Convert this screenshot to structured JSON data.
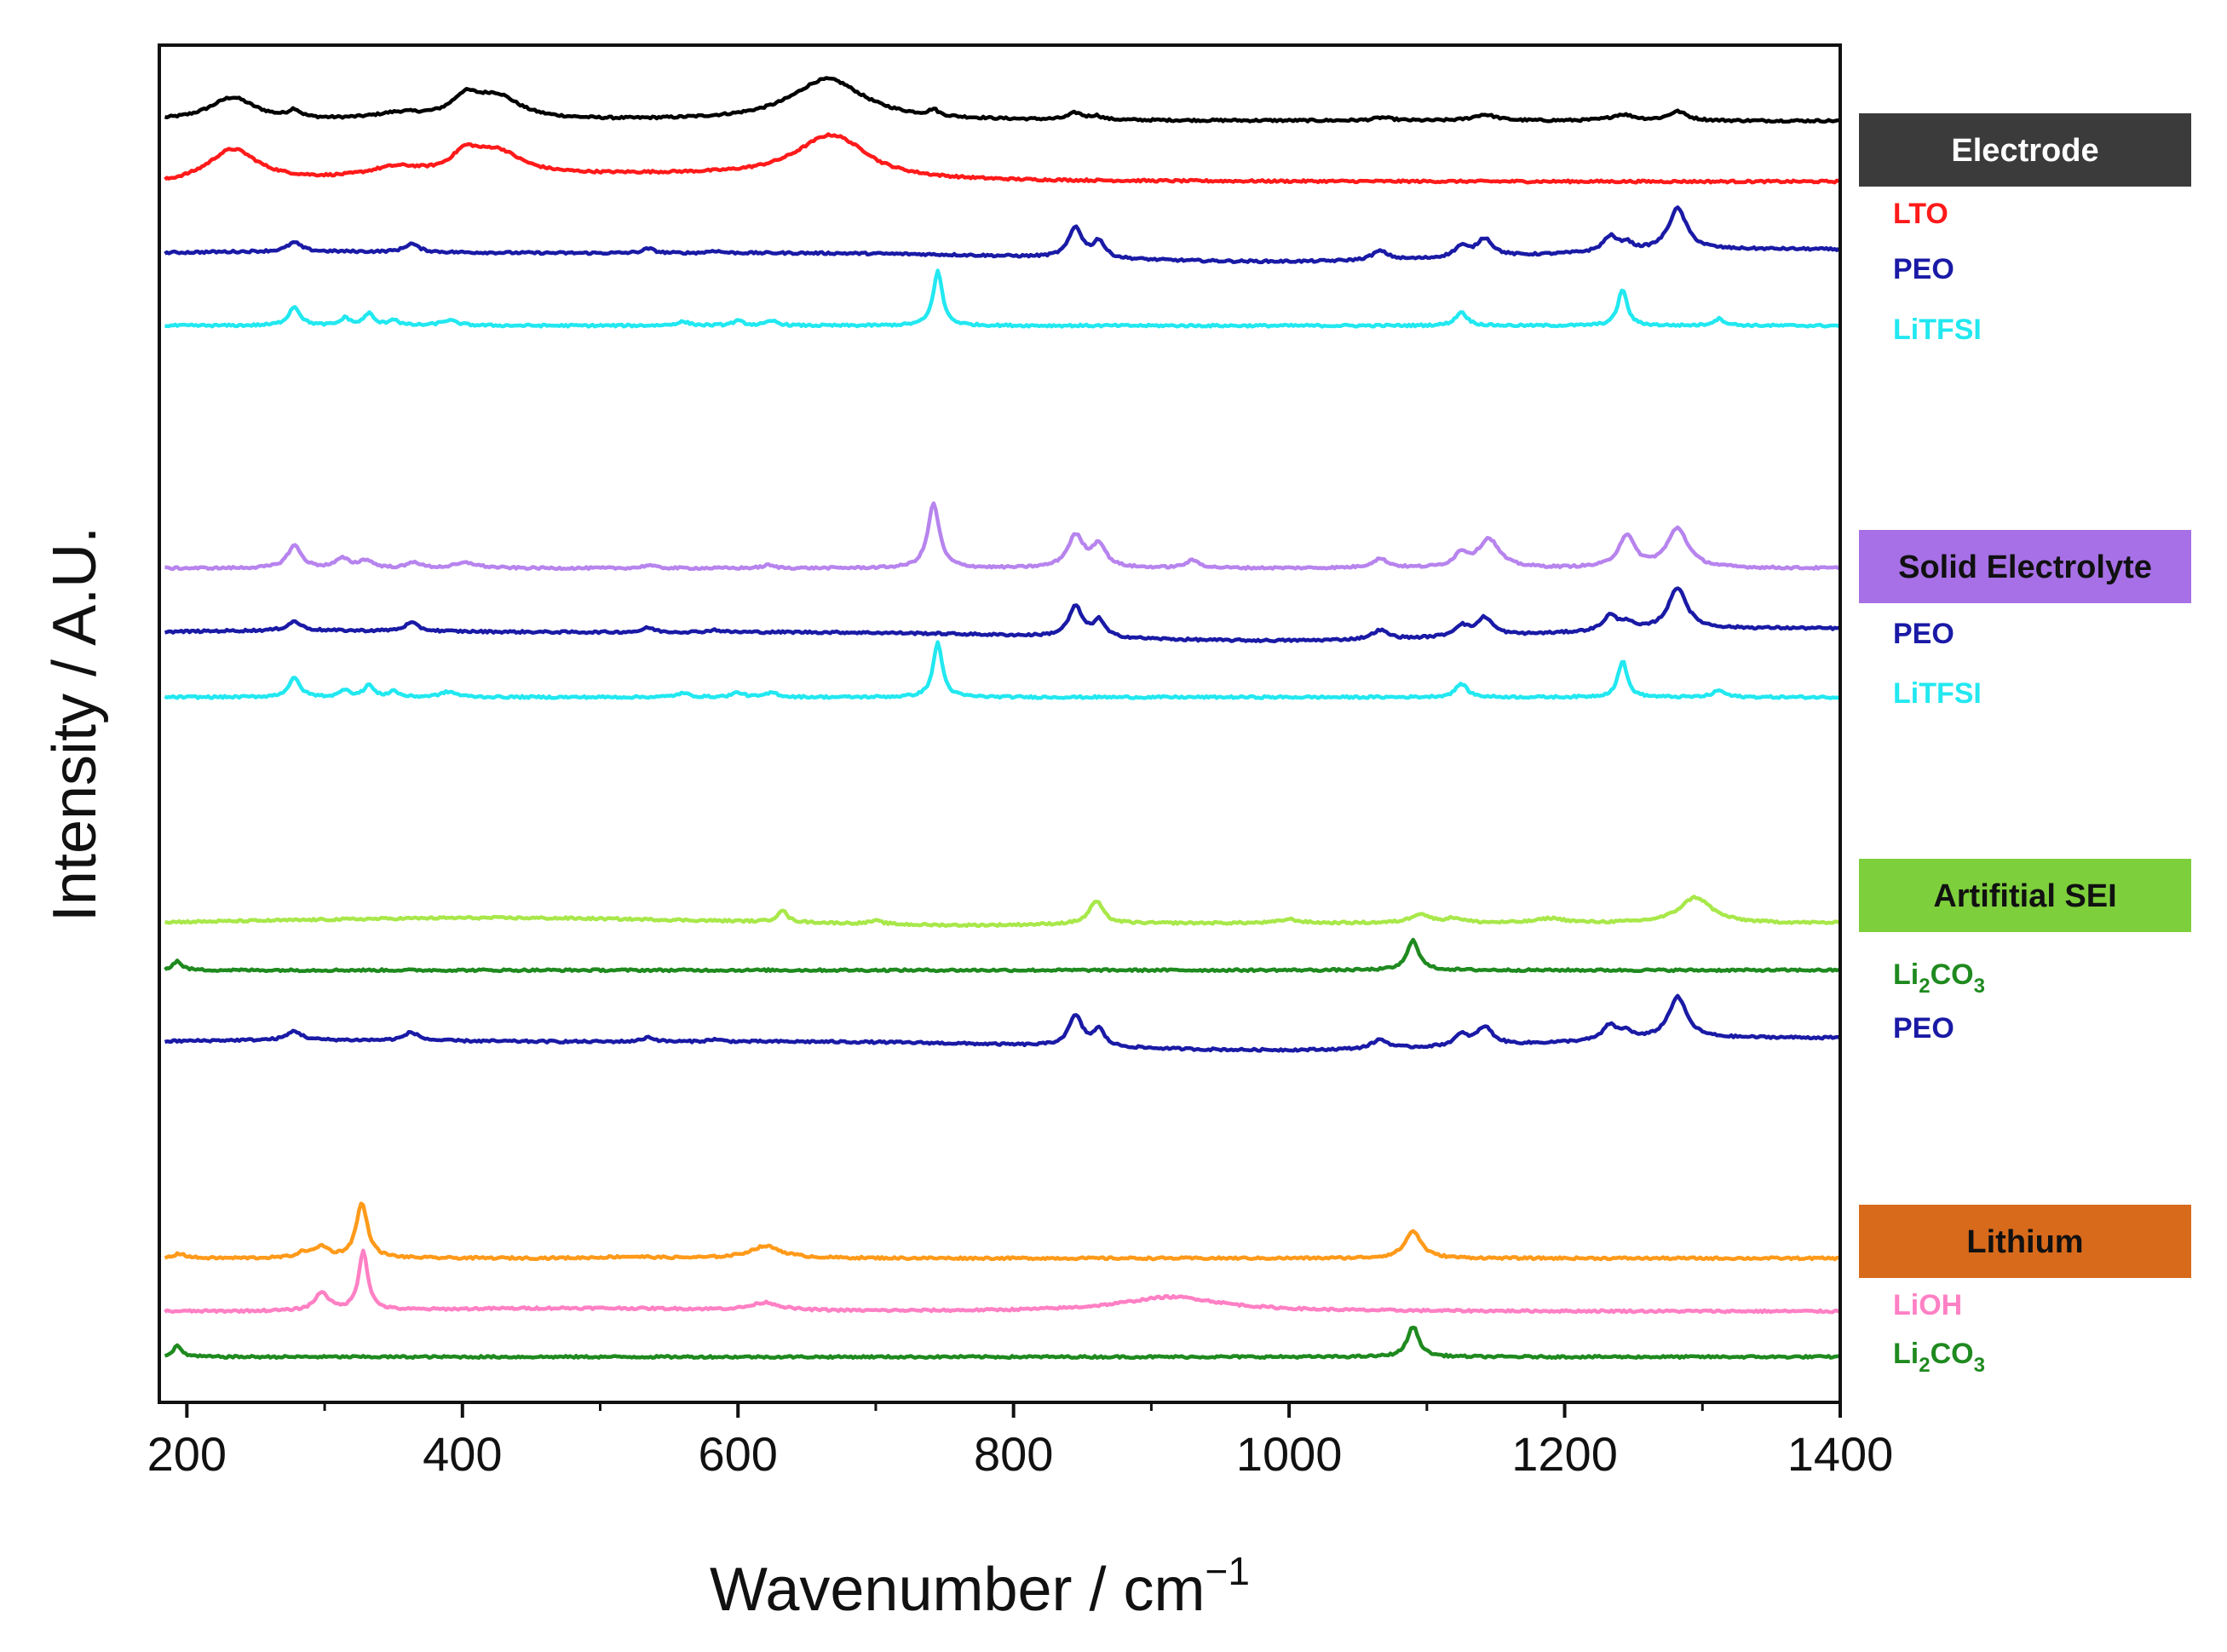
{
  "chart_data": {
    "type": "line",
    "title": "",
    "xlabel": "Wavenumber / cm",
    "xlabel_superscript": "−1",
    "ylabel": "Intensity / A.U.",
    "xlim": [
      180,
      1400
    ],
    "xticks": [
      200,
      400,
      600,
      800,
      1000,
      1200,
      1400
    ],
    "y_ticks_shown": false,
    "grid": false,
    "groups": [
      {
        "name": "Electrode",
        "box_color": "#3b3b3b",
        "text_color": "#ffffff",
        "series": [
          {
            "name": "Electrode",
            "color": "#000000",
            "offset": 8.2,
            "baseline": "flat",
            "peaks": [
              [
                233,
                0.3,
                20
              ],
              [
                278,
                0.1,
                5
              ],
              [
                355,
                0.08,
                22
              ],
              [
                402,
                0.25,
                12
              ],
              [
                425,
                0.3,
                20
              ],
              [
                665,
                0.55,
                32
              ],
              [
                742,
                0.08,
                4
              ],
              [
                845,
                0.09,
                6
              ],
              [
                860,
                0.05,
                5
              ],
              [
                1068,
                0.04,
                8
              ],
              [
                1142,
                0.08,
                10
              ],
              [
                1242,
                0.08,
                10
              ],
              [
                1282,
                0.12,
                8
              ]
            ]
          },
          {
            "name": "LTO",
            "color": "#ff1a1a",
            "offset": 7.4,
            "baseline": "lto",
            "peaks": [
              [
                233,
                0.42,
                22
              ],
              [
                352,
                0.14,
                26
              ],
              [
                402,
                0.25,
                12
              ],
              [
                425,
                0.32,
                22
              ],
              [
                668,
                0.58,
                32
              ]
            ]
          },
          {
            "name": "PEO",
            "color": "#1a1aa6",
            "offset": 6.5,
            "baseline": "peo",
            "peaks": [
              [
                278,
                0.12,
                6
              ],
              [
                363,
                0.11,
                6
              ],
              [
                535,
                0.06,
                5
              ],
              [
                583,
                0.03,
                5
              ],
              [
                845,
                0.4,
                6
              ],
              [
                862,
                0.22,
                5
              ],
              [
                1066,
                0.12,
                7
              ],
              [
                1125,
                0.14,
                6
              ],
              [
                1142,
                0.24,
                7
              ],
              [
                1233,
                0.2,
                6
              ],
              [
                1245,
                0.1,
                5
              ],
              [
                1282,
                0.55,
                8
              ]
            ]
          },
          {
            "name": "LiTFSI",
            "color": "#22e8f0",
            "offset": 5.5,
            "baseline": "flat",
            "peaks": [
              [
                278,
                0.25,
                5
              ],
              [
                315,
                0.1,
                4
              ],
              [
                332,
                0.16,
                4
              ],
              [
                350,
                0.08,
                4
              ],
              [
                390,
                0.07,
                7
              ],
              [
                560,
                0.05,
                6
              ],
              [
                600,
                0.06,
                5
              ],
              [
                625,
                0.06,
                5
              ],
              [
                745,
                0.72,
                4
              ],
              [
                1125,
                0.18,
                5
              ],
              [
                1242,
                0.48,
                4
              ],
              [
                1312,
                0.09,
                5
              ]
            ]
          }
        ]
      },
      {
        "name": "Solid Electrolyte",
        "box_color": "#a770e6",
        "text_color": "#111111",
        "series": [
          {
            "name": "Solid Electrolyte",
            "color": "#b784ee",
            "offset": 2.3,
            "baseline": "flat",
            "peaks": [
              [
                278,
                0.3,
                6
              ],
              [
                313,
                0.12,
                6
              ],
              [
                330,
                0.1,
                6
              ],
              [
                365,
                0.08,
                5
              ],
              [
                403,
                0.07,
                10
              ],
              [
                535,
                0.04,
                5
              ],
              [
                622,
                0.04,
                5
              ],
              [
                742,
                0.85,
                5
              ],
              [
                845,
                0.42,
                7
              ],
              [
                862,
                0.3,
                6
              ],
              [
                930,
                0.1,
                6
              ],
              [
                1066,
                0.12,
                7
              ],
              [
                1125,
                0.18,
                6
              ],
              [
                1145,
                0.38,
                9
              ],
              [
                1245,
                0.42,
                7
              ],
              [
                1282,
                0.52,
                9
              ]
            ]
          },
          {
            "name": "PEO",
            "color": "#1a1aa6",
            "offset": 1.5,
            "baseline": "peo",
            "peaks": [
              [
                278,
                0.12,
                6
              ],
              [
                363,
                0.11,
                6
              ],
              [
                535,
                0.06,
                5
              ],
              [
                583,
                0.03,
                5
              ],
              [
                845,
                0.4,
                6
              ],
              [
                862,
                0.22,
                5
              ],
              [
                1066,
                0.12,
                7
              ],
              [
                1125,
                0.14,
                6
              ],
              [
                1142,
                0.24,
                7
              ],
              [
                1233,
                0.2,
                6
              ],
              [
                1245,
                0.1,
                5
              ],
              [
                1282,
                0.55,
                8
              ]
            ]
          },
          {
            "name": "LiTFSI",
            "color": "#22e8f0",
            "offset": 0.6,
            "baseline": "flat",
            "peaks": [
              [
                278,
                0.25,
                5
              ],
              [
                315,
                0.1,
                4
              ],
              [
                332,
                0.16,
                4
              ],
              [
                350,
                0.08,
                4
              ],
              [
                390,
                0.07,
                7
              ],
              [
                560,
                0.05,
                6
              ],
              [
                600,
                0.06,
                5
              ],
              [
                625,
                0.06,
                5
              ],
              [
                745,
                0.72,
                4
              ],
              [
                1125,
                0.18,
                5
              ],
              [
                1242,
                0.48,
                4
              ],
              [
                1312,
                0.09,
                5
              ]
            ]
          }
        ]
      },
      {
        "name": "Artifitial  SEI",
        "box_color": "#7dcf3c",
        "text_color": "#111111",
        "series": [
          {
            "name": "Artifitial  SEI",
            "color": "#a8e84a",
            "offset": -2.4,
            "baseline": "sei",
            "peaks": [
              [
                632,
                0.16,
                4
              ],
              [
                700,
                0.04,
                6
              ],
              [
                860,
                0.3,
                6
              ],
              [
                1000,
                0.05,
                8
              ],
              [
                1095,
                0.12,
                8
              ],
              [
                1120,
                0.06,
                8
              ],
              [
                1190,
                0.06,
                12
              ],
              [
                1295,
                0.34,
                14
              ]
            ]
          },
          {
            "name": "Li2CO3",
            "label": "Li",
            "sub1": "2",
            "mid": "CO",
            "sub2": "3",
            "color": "#1f8a1f",
            "offset": -3.0,
            "baseline": "flat",
            "peaks": [
              [
                193,
                0.12,
                4
              ],
              [
                1090,
                0.4,
                5
              ]
            ]
          },
          {
            "name": "PEO",
            "color": "#1a1aa6",
            "offset": -3.9,
            "baseline": "peo",
            "peaks": [
              [
                278,
                0.12,
                6
              ],
              [
                363,
                0.11,
                6
              ],
              [
                535,
                0.06,
                5
              ],
              [
                583,
                0.03,
                5
              ],
              [
                845,
                0.4,
                6
              ],
              [
                862,
                0.22,
                5
              ],
              [
                1066,
                0.12,
                7
              ],
              [
                1125,
                0.14,
                6
              ],
              [
                1142,
                0.24,
                7
              ],
              [
                1233,
                0.2,
                6
              ],
              [
                1245,
                0.1,
                5
              ],
              [
                1282,
                0.55,
                8
              ]
            ]
          }
        ]
      },
      {
        "name": "Lithium",
        "box_color": "#d86a1c",
        "text_color": "#111111",
        "series": [
          {
            "name": "Lithium",
            "color": "#ff9a1a",
            "offset": -6.8,
            "baseline": "flat",
            "peaks": [
              [
                195,
                0.06,
                5
              ],
              [
                285,
                0.07,
                6
              ],
              [
                298,
                0.14,
                6
              ],
              [
                327,
                0.72,
                5
              ],
              [
                520,
                0.02,
                20
              ],
              [
                620,
                0.16,
                14
              ],
              [
                1090,
                0.36,
                7
              ]
            ]
          },
          {
            "name": "LiOH",
            "color": "#ff80c4",
            "offset": -7.5,
            "baseline": "lioh",
            "peaks": [
              [
                298,
                0.24,
                6
              ],
              [
                328,
                0.78,
                4
              ],
              [
                620,
                0.1,
                12
              ],
              [
                915,
                0.19,
                45
              ]
            ]
          },
          {
            "name": "Li2CO3",
            "label": "Li",
            "sub1": "2",
            "mid": "CO",
            "sub2": "3",
            "color": "#1f8a1f",
            "offset": -8.1,
            "baseline": "flat",
            "peaks": [
              [
                193,
                0.14,
                4
              ],
              [
                1090,
                0.4,
                5
              ]
            ]
          }
        ]
      }
    ]
  }
}
